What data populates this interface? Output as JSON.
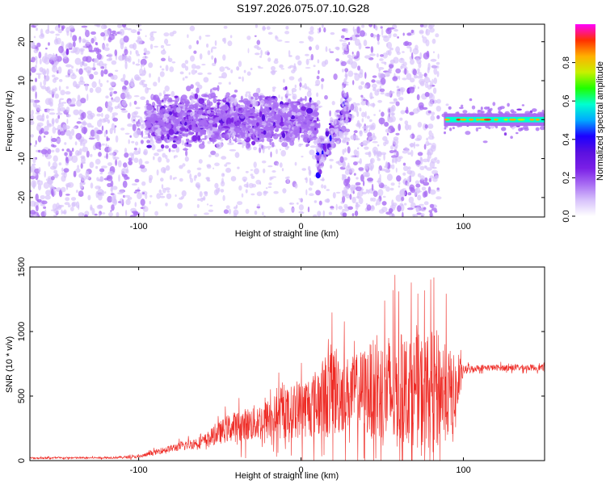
{
  "title": "S197.2026.075.07.10.G28",
  "colors": {
    "snr_line": "#ee2a24",
    "spectrogram_cmap": [
      "#ffffff",
      "#d7c2fb",
      "#a86cf3",
      "#7a1fe6",
      "#5a10e0",
      "#1c00ff",
      "#00aaff",
      "#00ffd0",
      "#20ff00",
      "#c8f000",
      "#ffb000",
      "#ff3000",
      "#ff00ff"
    ]
  },
  "chart_data": [
    {
      "type": "heatmap",
      "title": "S197.2026.075.07.10.G28",
      "xlabel": "Height of straight line (km)",
      "ylabel": "Frequency (Hz)",
      "xlim": [
        -167,
        150
      ],
      "ylim": [
        -25,
        24.5
      ],
      "x_ticks": [
        -100,
        0,
        100
      ],
      "x_tick_labels": [
        "-100",
        "0",
        "100"
      ],
      "y_ticks": [
        -20,
        -10,
        0,
        10,
        20
      ],
      "y_tick_labels": [
        "-20",
        "-10",
        "0",
        "10",
        "20"
      ],
      "colorbar": {
        "label": "Normalized spectral amplitude",
        "range": [
          0,
          1
        ],
        "ticks": [
          0.0,
          0.2,
          0.4,
          0.6,
          0.8
        ],
        "tick_labels": [
          "0.0",
          "0.2",
          "0.4",
          "0.6",
          "0.8"
        ]
      },
      "features": [
        {
          "name": "broadband scatter",
          "x_range": [
            -167,
            -95
          ],
          "freq_range": [
            -25,
            24.5
          ],
          "amplitude": 0.1
        },
        {
          "name": "band near 0 Hz",
          "x_range": [
            -95,
            10
          ],
          "freq_center": 0,
          "freq_halfwidth": 6,
          "amplitude": 0.2
        },
        {
          "name": "dip streak",
          "x_range": [
            10,
            30
          ],
          "freq_start": -10,
          "freq_end": 3,
          "amplitude": 0.3
        },
        {
          "name": "broadband scatter",
          "x_range": [
            25,
            85
          ],
          "freq_range": [
            -25,
            24.5
          ],
          "amplitude": 0.1
        },
        {
          "name": "narrow carrier line",
          "x_range": [
            88,
            150
          ],
          "freq_center": 0,
          "amplitude": 0.9
        }
      ]
    },
    {
      "type": "line",
      "xlabel": "Height of straight line (km)",
      "ylabel": "SNR (10 * v/v)",
      "xlim": [
        -167,
        150
      ],
      "ylim": [
        0,
        1500
      ],
      "x_ticks": [
        -100,
        0,
        100
      ],
      "x_tick_labels": [
        "-100",
        "0",
        "100"
      ],
      "y_ticks": [
        0,
        500,
        1000,
        1500
      ],
      "y_tick_labels": [
        "0",
        "500",
        "1000",
        "1500"
      ],
      "envelope": {
        "x": [
          -167,
          -120,
          -100,
          -85,
          -60,
          -45,
          -25,
          -5,
          10,
          20,
          30,
          45,
          55,
          65,
          75,
          85,
          95,
          100,
          110,
          130,
          150
        ],
        "mean": [
          20,
          22,
          30,
          80,
          150,
          250,
          300,
          380,
          450,
          550,
          520,
          550,
          520,
          560,
          530,
          570,
          500,
          700,
          720,
          720,
          720
        ],
        "spread": [
          12,
          12,
          20,
          40,
          80,
          180,
          250,
          350,
          450,
          650,
          450,
          650,
          800,
          700,
          750,
          750,
          500,
          60,
          40,
          40,
          40
        ]
      },
      "samples": 1800
    }
  ]
}
